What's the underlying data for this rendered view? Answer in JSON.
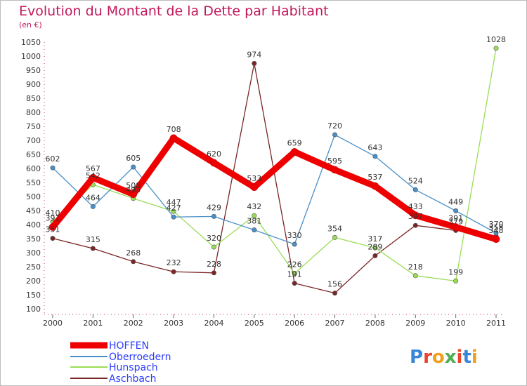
{
  "chart_data": {
    "type": "line",
    "title": "Evolution du Montant de la Dette par Habitant",
    "subtitle": "(en €)",
    "x": [
      "2000",
      "2001",
      "2002",
      "2003",
      "2004",
      "2005",
      "2006",
      "2007",
      "2008",
      "2009",
      "2010",
      "2011"
    ],
    "yticks": [
      100,
      150,
      200,
      250,
      300,
      350,
      400,
      450,
      500,
      550,
      600,
      650,
      700,
      750,
      800,
      850,
      900,
      950,
      1000,
      1050
    ],
    "ylim": [
      100,
      1050
    ],
    "grid": false,
    "legend_position": "bottom-left",
    "series": [
      {
        "name": "HOFFEN",
        "color": "#ee0000",
        "values": [
          391,
          567,
          508,
          708,
          620,
          533,
          659,
          595,
          537,
          433,
          391,
          348
        ]
      },
      {
        "name": "Oberroedern",
        "color": "#4a90c8",
        "values": [
          602,
          464,
          605,
          427,
          429,
          381,
          330,
          720,
          643,
          524,
          449,
          370
        ]
      },
      {
        "name": "Hunspach",
        "color": "#99dd55",
        "values": [
          410,
          542,
          493,
          447,
          320,
          432,
          226,
          354,
          317,
          218,
          199,
          1028
        ]
      },
      {
        "name": "Aschbach",
        "color": "#7a2626",
        "values": [
          351,
          315,
          268,
          232,
          228,
          974,
          191,
          156,
          289,
          397,
          379,
          358
        ]
      }
    ]
  },
  "logo": {
    "text": "Proxiti"
  }
}
